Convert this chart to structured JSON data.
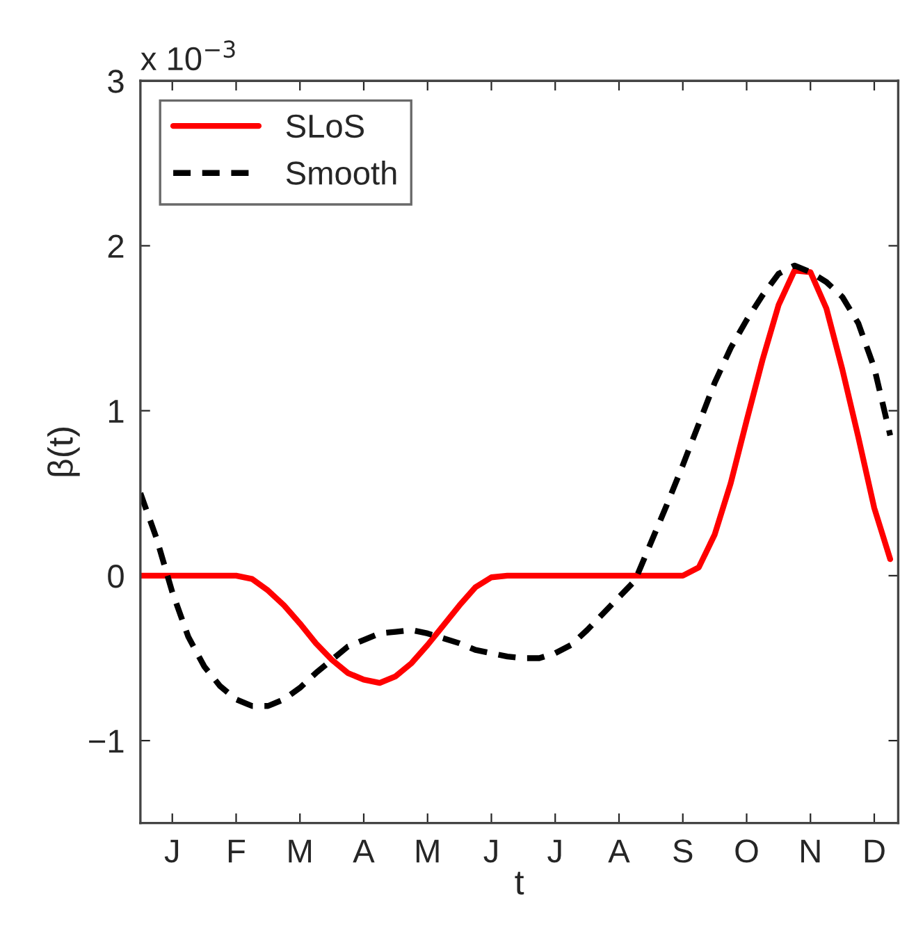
{
  "chart_data": {
    "type": "line",
    "xlabel": "t",
    "ylabel": "β(t)",
    "annotations": [
      "x 10$^{−3}$"
    ],
    "categories": [
      null,
      null,
      "J",
      null,
      null,
      null,
      "F",
      null,
      null,
      null,
      "M",
      null,
      null,
      null,
      "A",
      null,
      null,
      null,
      "M",
      null,
      null,
      null,
      "J",
      null,
      null,
      null,
      "J",
      null,
      null,
      null,
      "A",
      null,
      null,
      null,
      "S",
      null,
      null,
      null,
      "O",
      null,
      null,
      null,
      "N",
      null,
      null,
      null,
      "D",
      null
    ],
    "ylim": [
      -1.5,
      3
    ],
    "yticks": [
      {
        "value": -1,
        "label": "−1"
      },
      0,
      1,
      2,
      3
    ],
    "legend": "top left",
    "grid": false,
    "series": [
      {
        "name": "SLoS",
        "color": "#ff0000",
        "line_style": "solid",
        "values": [
          0,
          0,
          0,
          0,
          0,
          0,
          0,
          -0.02,
          -0.09,
          -0.18,
          -0.29,
          -0.41,
          -0.51,
          -0.59,
          -0.63,
          -0.65,
          -0.61,
          -0.53,
          -0.42,
          -0.3,
          -0.18,
          -0.07,
          -0.01,
          0,
          0,
          0,
          0,
          0,
          0,
          0,
          0,
          0,
          0,
          0,
          0,
          0.05,
          0.25,
          0.56,
          0.94,
          1.31,
          1.64,
          1.85,
          1.84,
          1.62,
          1.25,
          0.84,
          0.41,
          0.1
        ]
      },
      {
        "name": "Smooth",
        "color": "#000000",
        "line_style": "dashed",
        "values": [
          0.5,
          0.23,
          -0.1,
          -0.37,
          -0.55,
          -0.67,
          -0.75,
          -0.79,
          -0.79,
          -0.75,
          -0.68,
          -0.59,
          -0.51,
          -0.43,
          -0.39,
          -0.35,
          -0.34,
          -0.33,
          -0.35,
          -0.38,
          -0.41,
          -0.45,
          -0.47,
          -0.49,
          -0.5,
          -0.5,
          -0.47,
          -0.42,
          -0.33,
          -0.23,
          -0.13,
          -0.03,
          0.2,
          0.43,
          0.67,
          0.92,
          1.17,
          1.38,
          1.55,
          1.7,
          1.83,
          1.88,
          1.84,
          1.78,
          1.69,
          1.53,
          1.26,
          0.85
        ]
      }
    ]
  }
}
